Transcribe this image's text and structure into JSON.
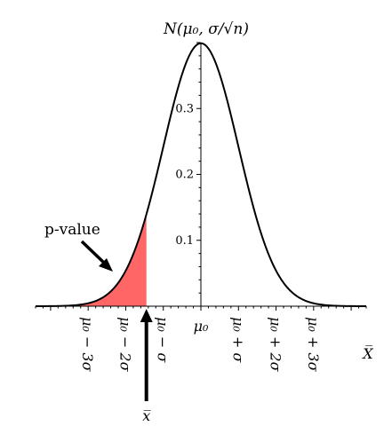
{
  "chart_data": {
    "type": "area",
    "title": "N(μ₀, σ/√n)",
    "distribution": "normal",
    "mean": 0,
    "sd": 1,
    "xlim": [
      -4.4,
      4.4
    ],
    "ylim": [
      0,
      0.4
    ],
    "x_axis_title": "X̅",
    "x_ticks": [
      {
        "x": -3,
        "label": "μ₀ − 3σ"
      },
      {
        "x": -2,
        "label": "μ₀ − 2σ"
      },
      {
        "x": -1,
        "label": "μ₀ − σ"
      },
      {
        "x": 0,
        "label": "μ₀"
      },
      {
        "x": 1,
        "label": "μ₀ + σ"
      },
      {
        "x": 2,
        "label": "μ₀ + 2σ"
      },
      {
        "x": 3,
        "label": "μ₀ + 3σ"
      }
    ],
    "y_ticks": [
      {
        "y": 0.1,
        "label": "0.1"
      },
      {
        "y": 0.2,
        "label": "0.2"
      },
      {
        "y": 0.3,
        "label": "0.3"
      }
    ],
    "shaded_region": {
      "from": -4.4,
      "to": -1.45,
      "label": "p-value",
      "color": "#ff6666"
    },
    "observed": {
      "x": -1.45,
      "label": "x̅"
    },
    "curve_color": "#000000"
  }
}
